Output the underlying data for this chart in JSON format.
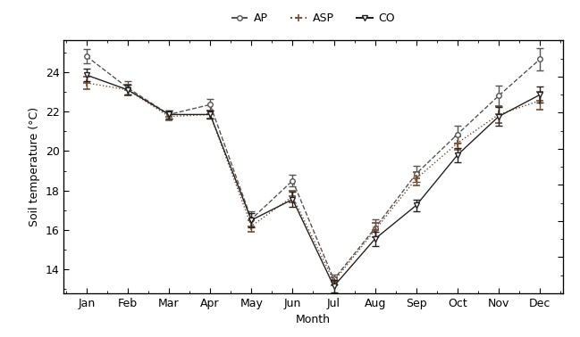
{
  "months": [
    "Jan",
    "Feb",
    "Mar",
    "Apr",
    "May",
    "Jun",
    "Jul",
    "Aug",
    "Sep",
    "Oct",
    "Nov",
    "Dec"
  ],
  "AP": {
    "mean": [
      24.8,
      23.2,
      21.85,
      22.35,
      16.55,
      18.5,
      13.5,
      16.1,
      18.85,
      20.85,
      22.8,
      24.65
    ],
    "err": [
      0.38,
      0.32,
      0.22,
      0.28,
      0.38,
      0.3,
      0.25,
      0.42,
      0.42,
      0.42,
      0.52,
      0.55
    ]
  },
  "ASP": {
    "mean": [
      23.45,
      23.1,
      21.75,
      21.85,
      16.2,
      17.7,
      13.4,
      16.0,
      18.6,
      20.4,
      21.85,
      22.55
    ],
    "err": [
      0.32,
      0.27,
      0.2,
      0.2,
      0.3,
      0.3,
      0.2,
      0.35,
      0.35,
      0.35,
      0.42,
      0.45
    ]
  },
  "CO": {
    "mean": [
      23.85,
      23.1,
      21.85,
      21.85,
      16.5,
      17.55,
      13.15,
      15.55,
      17.25,
      19.8,
      21.75,
      22.85
    ],
    "err": [
      0.3,
      0.25,
      0.2,
      0.2,
      0.35,
      0.38,
      0.32,
      0.35,
      0.3,
      0.35,
      0.48,
      0.4
    ]
  },
  "AP_color": "#555555",
  "ASP_color": "#7a4a2a",
  "CO_color": "#222222",
  "AP_linestyle": "--",
  "ASP_linestyle": ":",
  "CO_linestyle": "-",
  "AP_marker": "o",
  "ASP_marker": "+",
  "CO_marker": "v",
  "ylabel": "Soil temperature (°C)",
  "xlabel": "Month",
  "ylim": [
    12.8,
    25.6
  ],
  "background_color": "#ffffff"
}
